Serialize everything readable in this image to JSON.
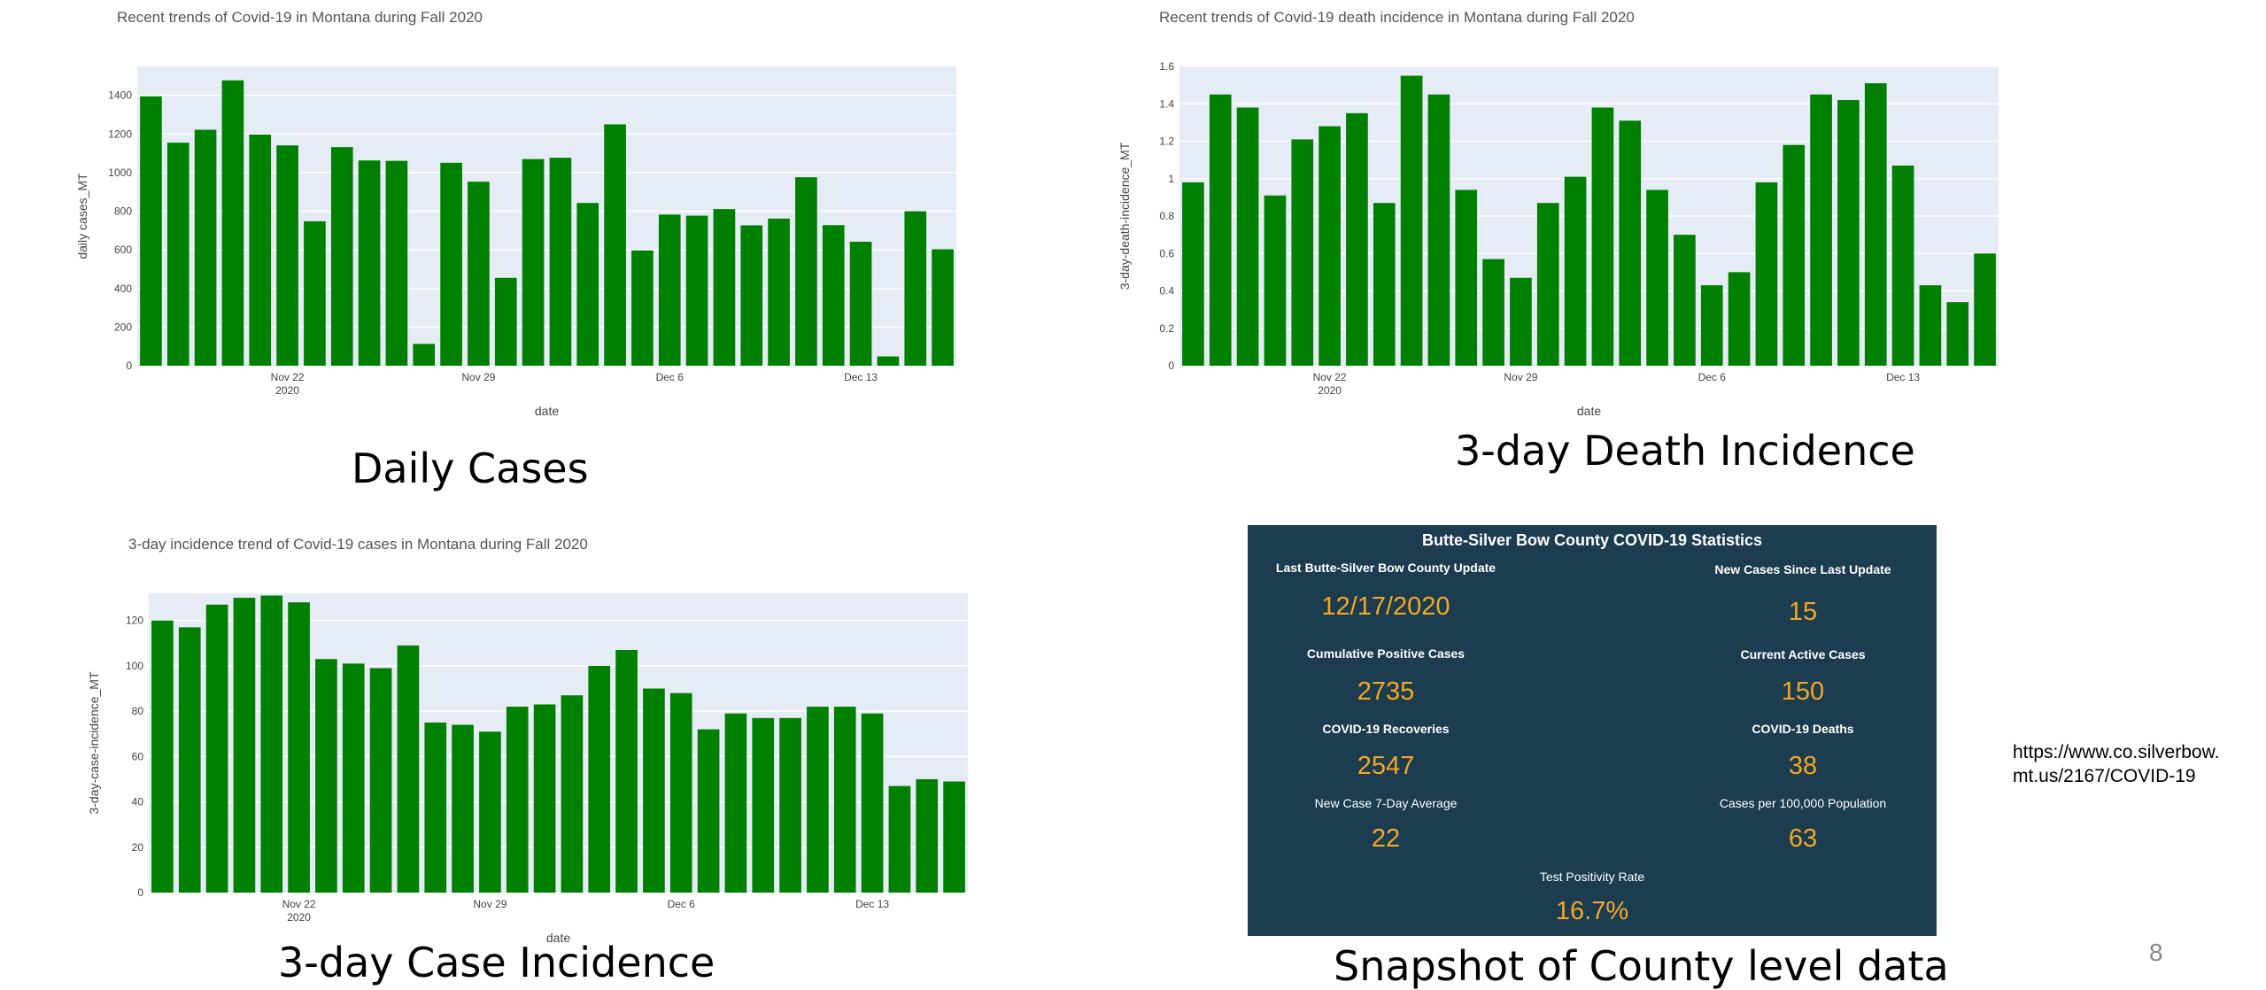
{
  "charts": [
    {
      "id": "daily",
      "type": "bar",
      "title": "Recent trends of Covid-19 in Montana during Fall 2020",
      "xlabel": "date",
      "ylabel": "daily cases_MT",
      "ylim": [
        0,
        1550
      ],
      "yticks": [
        0,
        200,
        400,
        600,
        800,
        1000,
        1200,
        1400
      ],
      "xticks": [
        {
          "label": "Nov 22",
          "sub": "2020",
          "index": 5
        },
        {
          "label": "Nov 29",
          "sub": "",
          "index": 12
        },
        {
          "label": "Dec 6",
          "sub": "",
          "index": 19
        },
        {
          "label": "Dec 13",
          "sub": "",
          "index": 26
        }
      ],
      "grid": true,
      "color": "#008000",
      "values": [
        1395,
        1155,
        1222,
        1478,
        1197,
        1141,
        748,
        1132,
        1063,
        1061,
        113,
        1051,
        953,
        455,
        1070,
        1077,
        843,
        1250,
        597,
        783,
        777,
        811,
        727,
        762,
        976,
        728,
        642,
        48,
        800,
        603
      ]
    },
    {
      "id": "death",
      "type": "bar",
      "title": "Recent trends of Covid-19 death incidence in Montana during Fall 2020",
      "xlabel": "date",
      "ylabel": "3-day-death-incidence_MT",
      "ylim": [
        0,
        1.6
      ],
      "yticks": [
        0,
        0.2,
        0.4,
        0.6,
        0.8,
        1,
        1.2,
        1.4,
        1.6
      ],
      "xticks": [
        {
          "label": "Nov 22",
          "sub": "2020",
          "index": 5
        },
        {
          "label": "Nov 29",
          "sub": "",
          "index": 12
        },
        {
          "label": "Dec 6",
          "sub": "",
          "index": 19
        },
        {
          "label": "Dec 13",
          "sub": "",
          "index": 26
        }
      ],
      "grid": true,
      "color": "#008000",
      "values": [
        0.98,
        1.45,
        1.38,
        0.91,
        1.21,
        1.28,
        1.35,
        0.87,
        1.55,
        1.45,
        0.94,
        0.57,
        0.47,
        0.87,
        1.01,
        1.38,
        1.31,
        0.94,
        0.7,
        0.43,
        0.5,
        0.98,
        1.18,
        1.45,
        1.42,
        1.51,
        1.07,
        0.43,
        0.34,
        0.6
      ]
    },
    {
      "id": "incidence",
      "type": "bar",
      "title": "3-day incidence trend of Covid-19 cases in Montana during Fall 2020",
      "xlabel": "date",
      "ylabel": "3-day-case-incidence_MT",
      "ylim": [
        0,
        132
      ],
      "yticks": [
        0,
        20,
        40,
        60,
        80,
        100,
        120
      ],
      "xticks": [
        {
          "label": "Nov 22",
          "sub": "2020",
          "index": 5
        },
        {
          "label": "Nov 29",
          "sub": "",
          "index": 12
        },
        {
          "label": "Dec 6",
          "sub": "",
          "index": 19
        },
        {
          "label": "Dec 13",
          "sub": "",
          "index": 26
        }
      ],
      "grid": true,
      "color": "#008000",
      "values": [
        120,
        117,
        127,
        130,
        131,
        128,
        103,
        101,
        99,
        109,
        75,
        74,
        71,
        82,
        83,
        87,
        100,
        107,
        90,
        88,
        72,
        79,
        77,
        77,
        82,
        82,
        79,
        47,
        50,
        49
      ]
    }
  ],
  "captions": {
    "daily": "Daily Cases",
    "death": "3-day Death Incidence",
    "incidence": "3-day Case Incidence",
    "county": "Snapshot of County level data"
  },
  "county_stats": {
    "title": "Butte-Silver Bow County COVID-19 Statistics",
    "last_update_label": "Last Butte-Silver Bow County Update",
    "last_update_value": "12/17/2020",
    "new_cases_label": "New Cases Since Last Update",
    "new_cases_value": "15",
    "cumulative_label": "Cumulative Positive Cases",
    "cumulative_value": "2735",
    "active_label": "Current Active Cases",
    "active_value": "150",
    "recoveries_label": "COVID-19 Recoveries",
    "recoveries_value": "2547",
    "deaths_label": "COVID-19 Deaths",
    "deaths_value": "38",
    "avg_label": "New Case 7-Day Average",
    "avg_value": "22",
    "per100k_label": "Cases per 100,000 Population",
    "per100k_value": "63",
    "positivity_label": "Test Positivity Rate",
    "positivity_value": "16.7%",
    "background": "#1c3d4f",
    "value_color": "#f5a623"
  },
  "source_url": "https://www.co.silverbow.\nmt.us/2167/COVID-19",
  "page_number": "8"
}
